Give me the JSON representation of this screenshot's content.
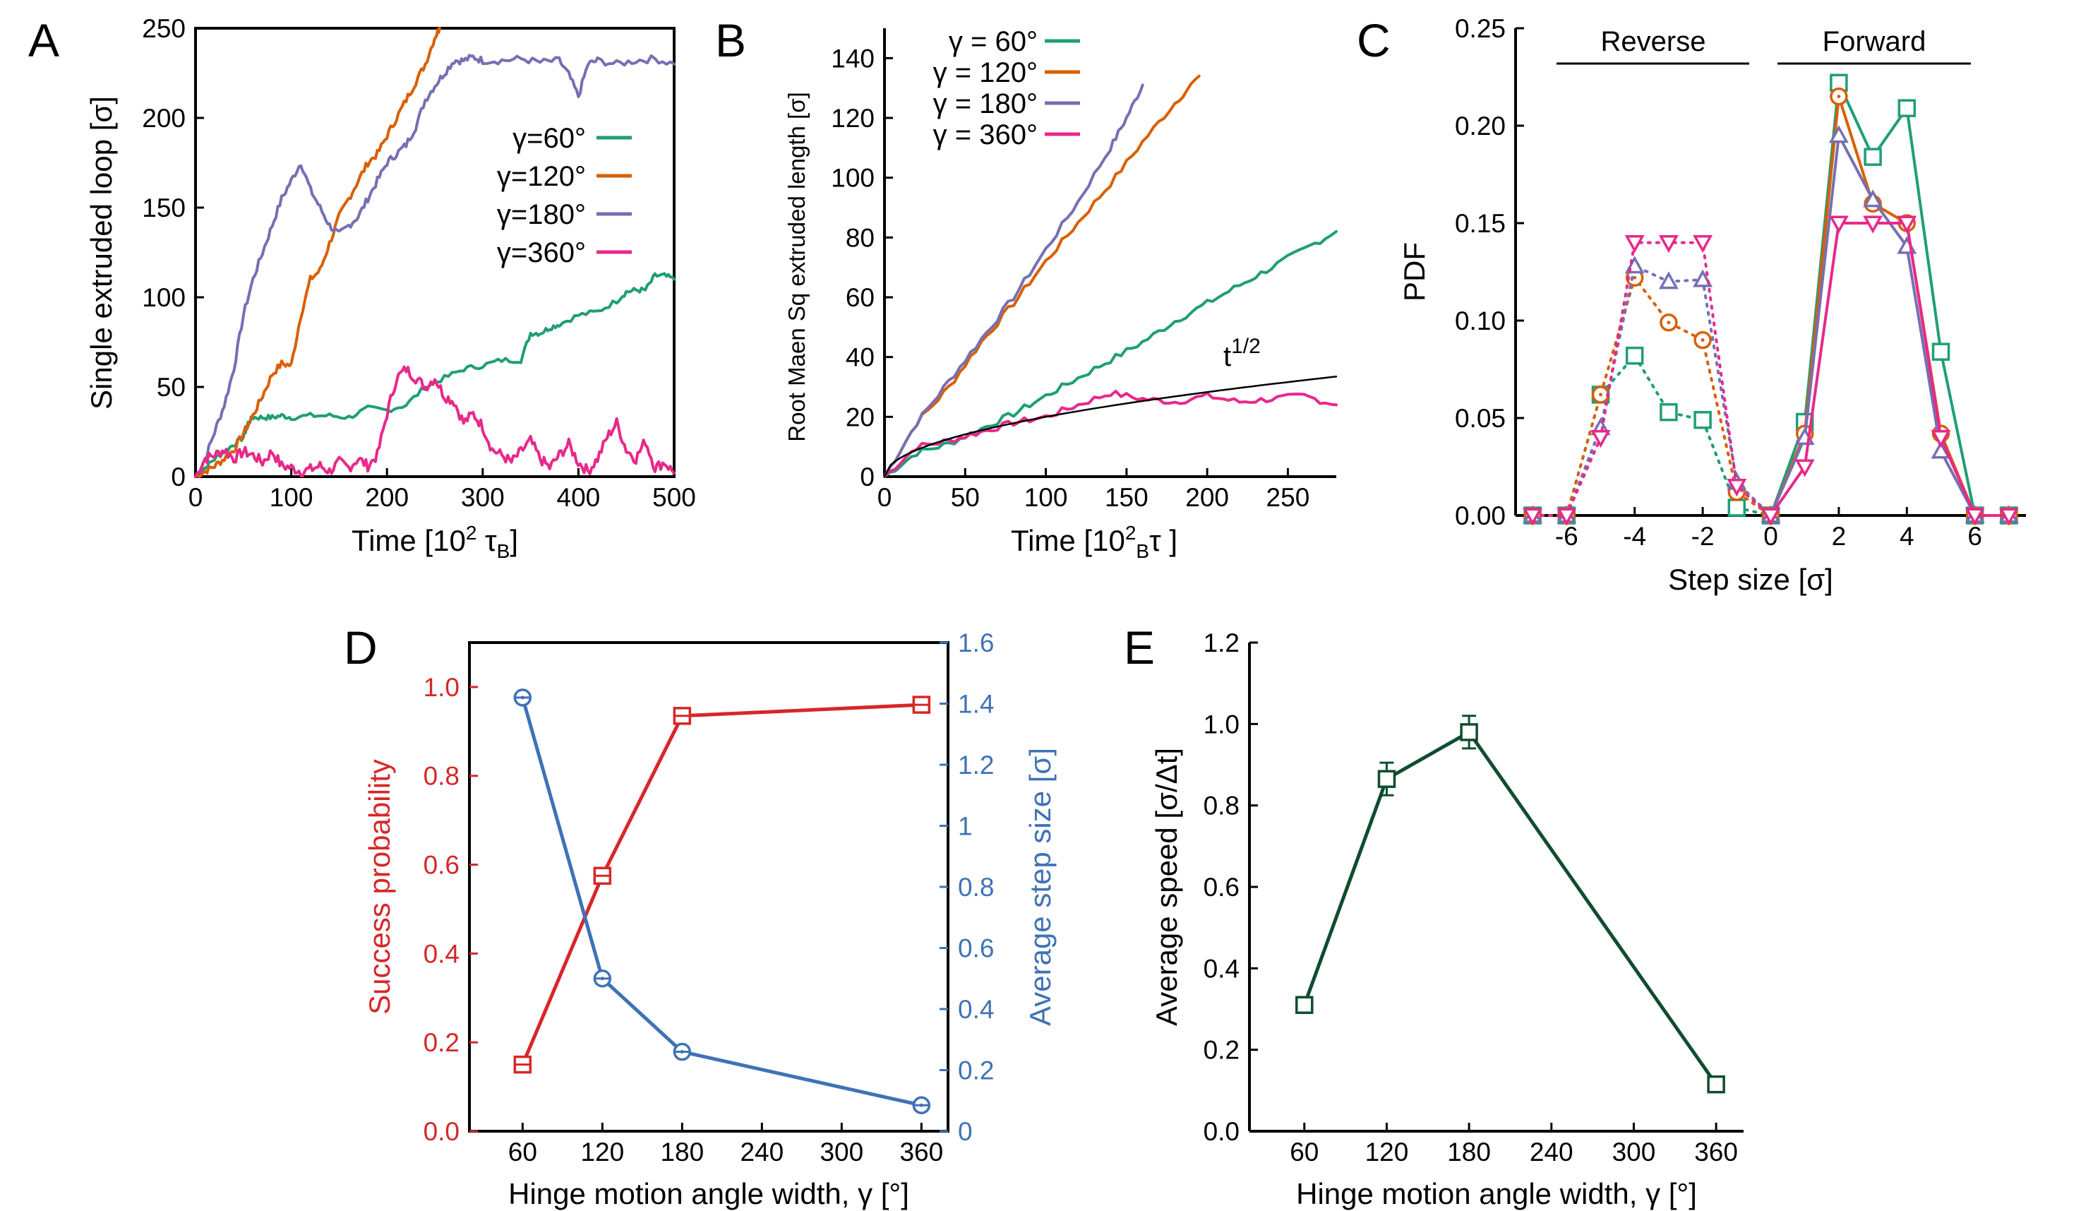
{
  "colors": {
    "g60": "#1f9e77",
    "g120": "#d95f02",
    "g180": "#7570b3",
    "g360": "#e7298a",
    "red": "#d62728",
    "blue": "#3f72b5",
    "darkgreen": "#0f4d2f",
    "black": "#000000"
  },
  "chart_data": [
    {
      "panel": "A",
      "type": "line",
      "xlabel": "Time [10² τB]",
      "ylabel": "Single extruded loop [σ]",
      "xlim": [
        0,
        500
      ],
      "ylim": [
        0,
        250
      ],
      "xticks": [
        "0",
        "100",
        "200",
        "300",
        "400",
        "500"
      ],
      "yticks": [
        "0",
        "50",
        "100",
        "150",
        "200",
        "250"
      ],
      "legend_position": "right",
      "series": [
        {
          "name": "γ=60°",
          "color_key": "g60",
          "x": [
            0,
            10,
            20,
            30,
            40,
            50,
            55,
            60,
            70,
            80,
            90,
            100,
            120,
            140,
            160,
            180,
            200,
            220,
            240,
            260,
            280,
            300,
            320,
            340,
            350,
            360,
            370,
            380,
            400,
            420,
            440,
            450,
            460,
            470,
            480,
            490,
            500
          ],
          "y": [
            0,
            5,
            10,
            14,
            18,
            22,
            30,
            33,
            33,
            33,
            34,
            33,
            34,
            34,
            33,
            38,
            37,
            40,
            50,
            55,
            60,
            62,
            65,
            65,
            80,
            80,
            83,
            85,
            90,
            92,
            98,
            103,
            104,
            104,
            112,
            112,
            110
          ]
        },
        {
          "name": "γ=120°",
          "color_key": "g120",
          "x": [
            0,
            10,
            20,
            30,
            40,
            50,
            60,
            70,
            80,
            90,
            100,
            110,
            120,
            130,
            140,
            150,
            160,
            170,
            180,
            190,
            200,
            210,
            220,
            230,
            240,
            250,
            255
          ],
          "y": [
            0,
            3,
            6,
            10,
            15,
            24,
            34,
            45,
            57,
            63,
            62,
            90,
            110,
            115,
            130,
            145,
            155,
            165,
            175,
            180,
            190,
            200,
            210,
            220,
            230,
            245,
            250
          ]
        },
        {
          "name": "γ=180°",
          "color_key": "g180",
          "x": [
            0,
            10,
            20,
            30,
            40,
            50,
            60,
            70,
            80,
            90,
            100,
            110,
            120,
            130,
            140,
            150,
            160,
            170,
            180,
            190,
            200,
            210,
            220,
            230,
            240,
            250,
            260,
            270,
            280,
            290,
            300,
            320,
            340,
            360,
            380,
            390,
            400,
            410,
            420,
            440,
            460,
            480,
            500
          ],
          "y": [
            0,
            10,
            25,
            40,
            60,
            90,
            110,
            125,
            140,
            155,
            165,
            175,
            160,
            150,
            140,
            135,
            140,
            145,
            155,
            165,
            175,
            180,
            185,
            195,
            210,
            218,
            225,
            232,
            232,
            234,
            232,
            232,
            233,
            231,
            232,
            224,
            212,
            230,
            232,
            230,
            232,
            233,
            230
          ]
        },
        {
          "name": "γ=360°",
          "color_key": "g360",
          "x": [
            0,
            10,
            20,
            30,
            40,
            50,
            60,
            70,
            80,
            90,
            100,
            110,
            120,
            130,
            140,
            150,
            160,
            170,
            180,
            190,
            200,
            210,
            220,
            230,
            240,
            250,
            260,
            270,
            280,
            290,
            300,
            310,
            320,
            330,
            340,
            350,
            360,
            370,
            380,
            390,
            400,
            410,
            420,
            430,
            440,
            450,
            460,
            470,
            480,
            490,
            500
          ],
          "y": [
            0,
            10,
            12,
            15,
            10,
            14,
            12,
            8,
            14,
            6,
            5,
            3,
            4,
            6,
            3,
            8,
            5,
            10,
            6,
            12,
            35,
            55,
            60,
            55,
            50,
            55,
            45,
            42,
            30,
            35,
            28,
            15,
            12,
            8,
            14,
            20,
            10,
            5,
            12,
            18,
            8,
            3,
            10,
            22,
            30,
            15,
            10,
            20,
            5,
            8,
            2
          ]
        }
      ]
    },
    {
      "panel": "B",
      "type": "line",
      "xlabel": "Time [10² τB]",
      "ylabel": "Root Maen Sq extruded length [σ]",
      "xlim": [
        0,
        280
      ],
      "ylim": [
        0,
        150
      ],
      "xticks": [
        "0",
        "50",
        "100",
        "150",
        "200",
        "250"
      ],
      "yticks": [
        "0",
        "20",
        "40",
        "60",
        "80",
        "100",
        "120",
        "140"
      ],
      "annotation": "t^1/2",
      "legend_position": "top-left",
      "series": [
        {
          "name": "γ = 60°",
          "color_key": "g60",
          "x": [
            0,
            20,
            40,
            60,
            80,
            100,
            120,
            140,
            160,
            180,
            200,
            220,
            240,
            260,
            280
          ],
          "y": [
            0,
            8,
            11,
            16,
            21,
            27,
            33,
            39,
            45,
            52,
            58,
            64,
            70,
            76,
            82
          ]
        },
        {
          "name": "γ = 120°",
          "color_key": "g120",
          "x": [
            0,
            20,
            40,
            60,
            80,
            100,
            120,
            140,
            160,
            180,
            195
          ],
          "y": [
            0,
            18,
            30,
            45,
            58,
            72,
            85,
            98,
            112,
            125,
            134
          ]
        },
        {
          "name": "γ = 180°",
          "color_key": "g180",
          "x": [
            0,
            20,
            40,
            60,
            80,
            100,
            120,
            140,
            150,
            160
          ],
          "y": [
            0,
            18,
            32,
            46,
            60,
            76,
            92,
            110,
            120,
            131
          ]
        },
        {
          "name": "γ = 360°",
          "color_key": "g360",
          "x": [
            0,
            20,
            40,
            60,
            80,
            100,
            120,
            140,
            160,
            180,
            200,
            220,
            240,
            260,
            280
          ],
          "y": [
            0,
            10,
            12,
            15,
            18,
            20,
            24,
            28,
            26,
            25,
            27,
            25,
            26,
            27,
            24
          ]
        },
        {
          "name": "t^1/2",
          "color_key": "black",
          "x": [
            0,
            5,
            10,
            20,
            40,
            60,
            80,
            100,
            130,
            160,
            200,
            240,
            280
          ],
          "y": [
            0,
            4.5,
            6.3,
            8.9,
            12.6,
            15.5,
            17.9,
            20,
            22.8,
            25.3,
            28.3,
            31,
            33.5
          ]
        }
      ]
    },
    {
      "panel": "C",
      "type": "line",
      "xlabel": "Step size [σ]",
      "ylabel": "PDF",
      "xlim": [
        -7.5,
        7.5
      ],
      "ylim": [
        0,
        0.25
      ],
      "xticks": [
        "-6",
        "-4",
        "-2",
        "0",
        "2",
        "4",
        "6"
      ],
      "yticks": [
        "0.00",
        "0.05",
        "0.10",
        "0.15",
        "0.20",
        "0.25"
      ],
      "annotations": [
        "Reverse",
        "Forward"
      ],
      "series": [
        {
          "name": "γ=60°",
          "color_key": "g60",
          "marker": "square",
          "x": [
            -7,
            -6,
            -5,
            -4,
            -3,
            -2,
            -1,
            0,
            1,
            2,
            3,
            4,
            5,
            6,
            7
          ],
          "y": [
            0,
            0,
            0.062,
            0.082,
            0.053,
            0.049,
            0.004,
            0,
            0.048,
            0.222,
            0.184,
            0.209,
            0.084,
            0,
            0
          ]
        },
        {
          "name": "γ=120°",
          "color_key": "g120",
          "marker": "circle",
          "x": [
            -7,
            -6,
            -5,
            -4,
            -3,
            -2,
            -1,
            0,
            1,
            2,
            3,
            4,
            5,
            6,
            7
          ],
          "y": [
            0,
            0,
            0.062,
            0.122,
            0.099,
            0.09,
            0.012,
            0,
            0.042,
            0.215,
            0.16,
            0.15,
            0.042,
            0,
            0
          ]
        },
        {
          "name": "γ=180°",
          "color_key": "g180",
          "marker": "triangle-up",
          "x": [
            -7,
            -6,
            -5,
            -4,
            -3,
            -2,
            -1,
            0,
            1,
            2,
            3,
            4,
            5,
            6,
            7
          ],
          "y": [
            0,
            0,
            0.045,
            0.128,
            0.12,
            0.121,
            0.017,
            0,
            0.04,
            0.195,
            0.162,
            0.138,
            0.033,
            0,
            0
          ]
        },
        {
          "name": "γ=360°",
          "color_key": "g360",
          "marker": "triangle-down",
          "x": [
            -7,
            -6,
            -5,
            -4,
            -3,
            -2,
            -1,
            0,
            1,
            2,
            3,
            4,
            5,
            6,
            7
          ],
          "y": [
            0,
            0,
            0.04,
            0.14,
            0.14,
            0.14,
            0.015,
            0,
            0.025,
            0.15,
            0.15,
            0.15,
            0.04,
            0,
            0
          ]
        }
      ]
    },
    {
      "panel": "D",
      "type": "line",
      "xlabel": "Hinge motion angle width,  γ [°]",
      "ylabel": "Success probability",
      "ylabel_right": "Average step size [σ]",
      "xlim": [
        20,
        380
      ],
      "ylim": [
        0,
        1.1
      ],
      "ylim_right": [
        0,
        1.6
      ],
      "xticks": [
        "60",
        "120",
        "180",
        "240",
        "300",
        "360"
      ],
      "yticks": [
        "0.0",
        "0.2",
        "0.4",
        "0.6",
        "0.8",
        "1.0"
      ],
      "yticks_right": [
        "0",
        "0.2",
        "0.4",
        "0.6",
        "0.8",
        "1",
        "1.2",
        "1.4",
        "1.6"
      ],
      "series": [
        {
          "name": "Success probability",
          "color_key": "red",
          "marker": "square",
          "axis": "left",
          "x": [
            60,
            120,
            180,
            360
          ],
          "y": [
            0.15,
            0.575,
            0.935,
            0.96
          ]
        },
        {
          "name": "Average step size",
          "color_key": "blue",
          "marker": "circle",
          "axis": "right",
          "x": [
            60,
            120,
            180,
            360
          ],
          "y": [
            1.42,
            0.5,
            0.26,
            0.085
          ]
        }
      ]
    },
    {
      "panel": "E",
      "type": "line",
      "xlabel": "Hinge motion angle width,  γ [°]",
      "ylabel": "Average speed  [σ/Δt]",
      "xlim": [
        20,
        380
      ],
      "ylim": [
        0,
        1.2
      ],
      "xticks": [
        "60",
        "120",
        "180",
        "240",
        "300",
        "360"
      ],
      "yticks": [
        "0.0",
        "0.2",
        "0.4",
        "0.6",
        "0.8",
        "1.0",
        "1.2"
      ],
      "series": [
        {
          "name": "Average speed",
          "color_key": "darkgreen",
          "marker": "square",
          "x": [
            60,
            120,
            180,
            360
          ],
          "y": [
            0.31,
            0.865,
            0.98,
            0.115
          ],
          "err": [
            0.015,
            0.04,
            0.04,
            0.015
          ]
        }
      ]
    }
  ]
}
